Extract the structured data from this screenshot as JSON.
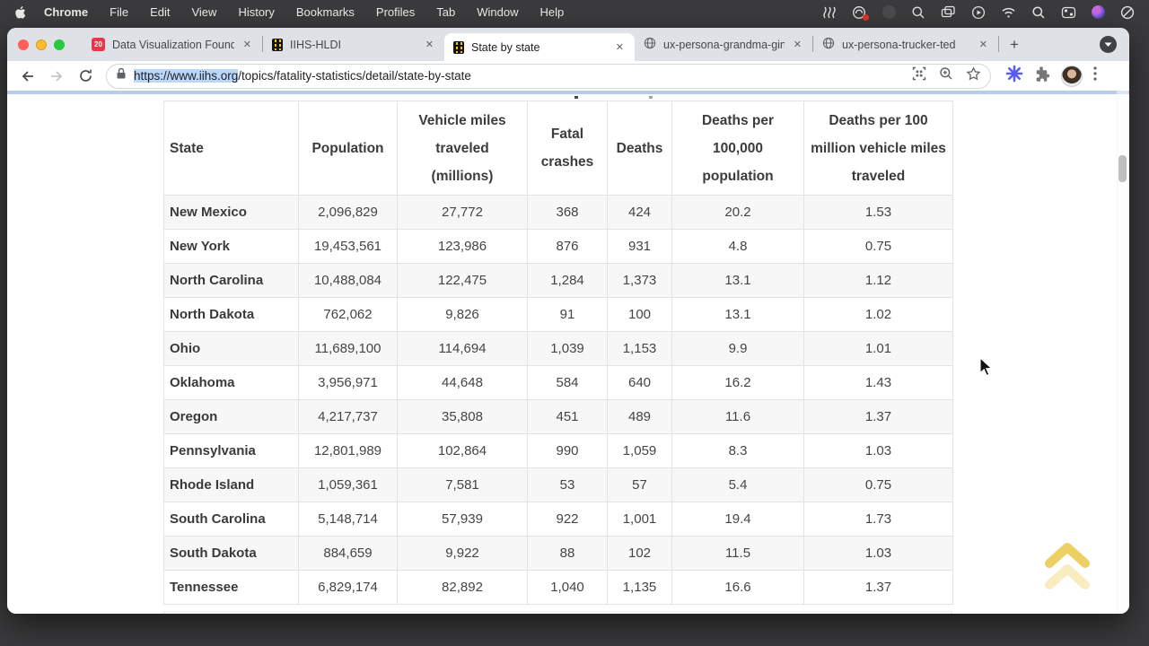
{
  "menubar": {
    "items": [
      "Chrome",
      "File",
      "Edit",
      "View",
      "History",
      "Bookmarks",
      "Profiles",
      "Tab",
      "Window",
      "Help"
    ]
  },
  "tabs": [
    {
      "label": "Data Visualization Founda",
      "favicon": "calendar-20-icon",
      "active": false
    },
    {
      "label": "IIHS-HLDI",
      "favicon": "road-icon",
      "active": false
    },
    {
      "label": "State by state",
      "favicon": "road-icon",
      "active": true
    },
    {
      "label": "ux-persona-grandma-gin",
      "favicon": "globe-icon",
      "active": false
    },
    {
      "label": "ux-persona-trucker-ted",
      "favicon": "globe-icon",
      "active": false
    }
  ],
  "tab_misc": {
    "close_glyph": "✕",
    "new_tab_glyph": "+",
    "calendar_badge": "20"
  },
  "toolbar": {
    "url_selected": "https://www.iihs.org",
    "url_rest": "/topics/fatality-statistics/detail/state-by-state"
  },
  "table": {
    "columns": [
      "State",
      "Population",
      "Vehicle miles traveled (millions)",
      "Fatal crashes",
      "Deaths",
      "Deaths per 100,000 population",
      "Deaths per 100 million vehicle miles traveled"
    ],
    "rows": [
      [
        "New Mexico",
        "2,096,829",
        "27,772",
        "368",
        "424",
        "20.2",
        "1.53"
      ],
      [
        "New York",
        "19,453,561",
        "123,986",
        "876",
        "931",
        "4.8",
        "0.75"
      ],
      [
        "North Carolina",
        "10,488,084",
        "122,475",
        "1,284",
        "1,373",
        "13.1",
        "1.12"
      ],
      [
        "North Dakota",
        "762,062",
        "9,826",
        "91",
        "100",
        "13.1",
        "1.02"
      ],
      [
        "Ohio",
        "11,689,100",
        "114,694",
        "1,039",
        "1,153",
        "9.9",
        "1.01"
      ],
      [
        "Oklahoma",
        "3,956,971",
        "44,648",
        "584",
        "640",
        "16.2",
        "1.43"
      ],
      [
        "Oregon",
        "4,217,737",
        "35,808",
        "451",
        "489",
        "11.6",
        "1.37"
      ],
      [
        "Pennsylvania",
        "12,801,989",
        "102,864",
        "990",
        "1,059",
        "8.3",
        "1.03"
      ],
      [
        "Rhode Island",
        "1,059,361",
        "7,581",
        "53",
        "57",
        "5.4",
        "0.75"
      ],
      [
        "South Carolina",
        "5,148,714",
        "57,939",
        "922",
        "1,001",
        "19.4",
        "1.73"
      ],
      [
        "South Dakota",
        "884,659",
        "9,922",
        "88",
        "102",
        "11.5",
        "1.03"
      ],
      [
        "Tennessee",
        "6,829,174",
        "82,892",
        "1,040",
        "1,135",
        "16.6",
        "1.37"
      ]
    ]
  },
  "colors": {
    "menubar_bg": "#3b3b3d",
    "tabstrip_bg": "#dee1e6",
    "selection_highlight": "#b9d7fb",
    "site_header_blue": "#b6cde9",
    "row_alt_bg": "#f7f7f8",
    "gold_chevron": "#e9c43c",
    "extension_accent": "#5a5cf0"
  }
}
